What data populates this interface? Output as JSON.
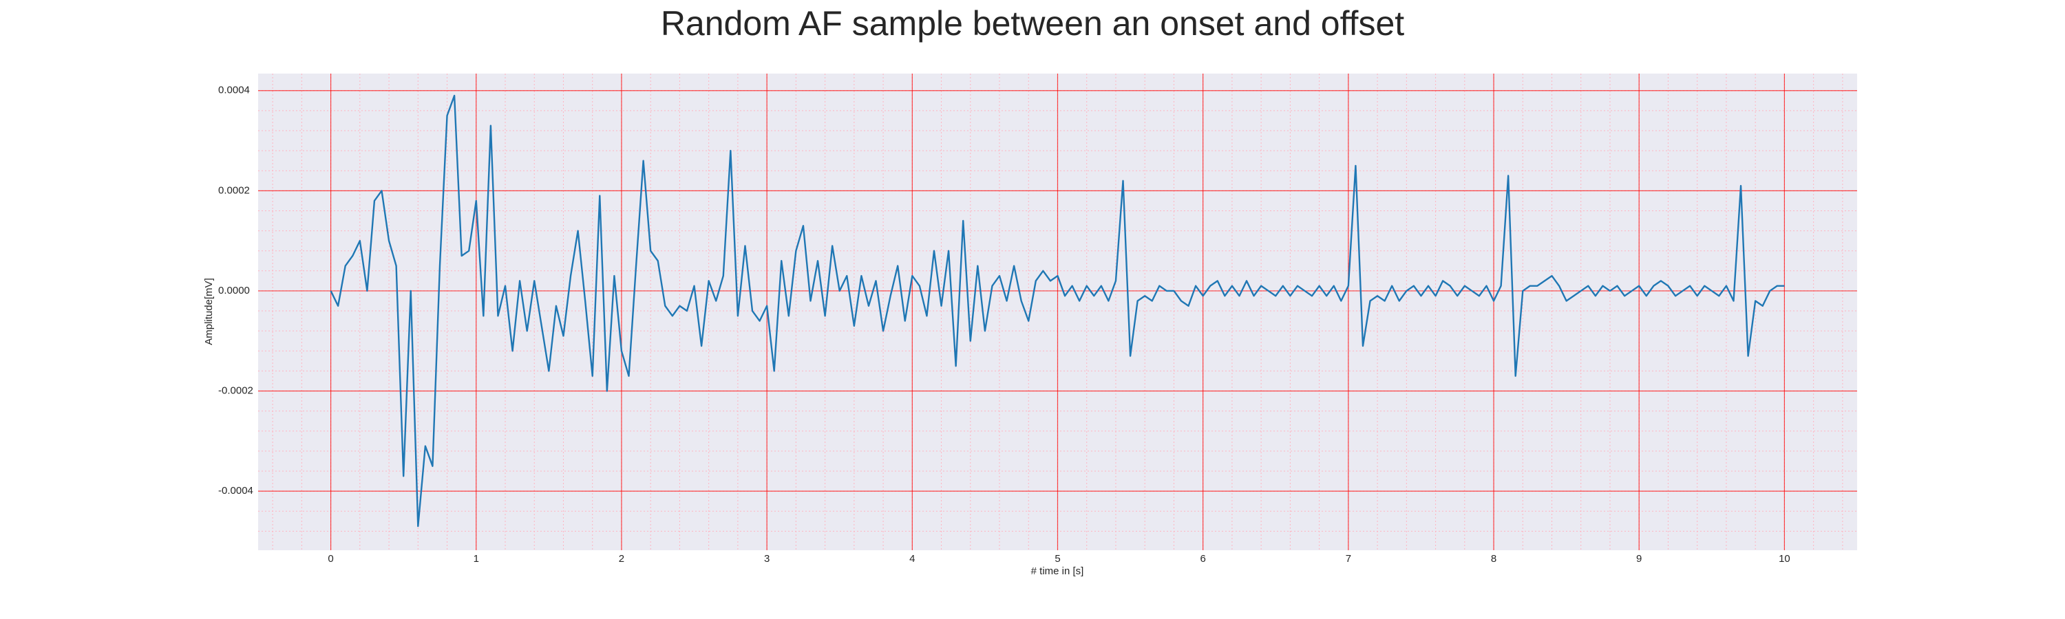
{
  "chart_data": {
    "type": "line",
    "title": "Random AF sample between an onset and offset",
    "xlabel": "# time in [s]",
    "ylabel": "Amplitude[mV]",
    "color": "#1f77b4",
    "grid": true,
    "grid_color": "#ff0000",
    "xlim": [
      -0.5,
      10.5
    ],
    "xticks": [
      0,
      1,
      2,
      3,
      4,
      5,
      6,
      7,
      8,
      9,
      10
    ],
    "ylim": [
      -0.000518,
      0.000434
    ],
    "yticks": [
      -0.0004,
      -0.0002,
      {
        "value": 0,
        "label": "0.0000"
      },
      0.0002,
      0.0004
    ],
    "x": [
      0,
      0.05,
      0.1,
      0.15,
      0.2,
      0.25,
      0.3,
      0.35,
      0.4,
      0.45,
      0.5,
      0.55,
      0.6,
      0.65,
      0.7,
      0.75,
      0.8,
      0.85,
      0.9,
      0.95,
      1,
      1.05,
      1.1,
      1.15,
      1.2,
      1.25,
      1.3,
      1.35,
      1.4,
      1.45,
      1.5,
      1.55,
      1.6,
      1.65,
      1.7,
      1.75,
      1.8,
      1.85,
      1.9,
      1.95,
      2,
      2.05,
      2.1,
      2.15,
      2.2,
      2.25,
      2.3,
      2.35,
      2.4,
      2.45,
      2.5,
      2.55,
      2.6,
      2.65,
      2.7,
      2.75,
      2.8,
      2.85,
      2.9,
      2.95,
      3,
      3.05,
      3.1,
      3.15,
      3.2,
      3.25,
      3.3,
      3.35,
      3.4,
      3.45,
      3.5,
      3.55,
      3.6,
      3.65,
      3.7,
      3.75,
      3.8,
      3.85,
      3.9,
      3.95,
      4,
      4.05,
      4.1,
      4.15,
      4.2,
      4.25,
      4.3,
      4.35,
      4.4,
      4.45,
      4.5,
      4.55,
      4.6,
      4.65,
      4.7,
      4.75,
      4.8,
      4.85,
      4.9,
      4.95,
      5,
      5.05,
      5.1,
      5.15,
      5.2,
      5.25,
      5.3,
      5.35,
      5.4,
      5.45,
      5.5,
      5.55,
      5.6,
      5.65,
      5.7,
      5.75,
      5.8,
      5.85,
      5.9,
      5.95,
      6,
      6.05,
      6.1,
      6.15,
      6.2,
      6.25,
      6.3,
      6.35,
      6.4,
      6.45,
      6.5,
      6.55,
      6.6,
      6.65,
      6.7,
      6.75,
      6.8,
      6.85,
      6.9,
      6.95,
      7,
      7.05,
      7.1,
      7.15,
      7.2,
      7.25,
      7.3,
      7.35,
      7.4,
      7.45,
      7.5,
      7.55,
      7.6,
      7.65,
      7.7,
      7.75,
      7.8,
      7.85,
      7.9,
      7.95,
      8,
      8.05,
      8.1,
      8.15,
      8.2,
      8.25,
      8.3,
      8.35,
      8.4,
      8.45,
      8.5,
      8.55,
      8.6,
      8.65,
      8.7,
      8.75,
      8.8,
      8.85,
      8.9,
      8.95,
      9,
      9.05,
      9.1,
      9.15,
      9.2,
      9.25,
      9.3,
      9.35,
      9.4,
      9.45,
      9.5,
      9.55,
      9.6,
      9.65,
      9.7,
      9.75,
      9.8,
      9.85,
      9.9,
      9.95,
      10
    ],
    "values": [
      0,
      -3e-05,
      5e-05,
      7e-05,
      0.0001,
      0,
      0.00018,
      0.0002,
      0.0001,
      5e-05,
      -0.00037,
      0,
      -0.00047,
      -0.00031,
      -0.00035,
      5e-05,
      0.00035,
      0.00039,
      7e-05,
      8e-05,
      0.00018,
      -5e-05,
      0.00033,
      -5e-05,
      1e-05,
      -0.00012,
      2e-05,
      -8e-05,
      2e-05,
      -7e-05,
      -0.00016,
      -3e-05,
      -9e-05,
      3e-05,
      0.00012,
      -2e-05,
      -0.00017,
      0.00019,
      -0.0002,
      3e-05,
      -0.00012,
      -0.00017,
      5e-05,
      0.00026,
      8e-05,
      6e-05,
      -3e-05,
      -5e-05,
      -3e-05,
      -4e-05,
      1e-05,
      -0.00011,
      2e-05,
      -2e-05,
      3e-05,
      0.00028,
      -5e-05,
      9e-05,
      -4e-05,
      -6e-05,
      -3e-05,
      -0.00016,
      6e-05,
      -5e-05,
      8e-05,
      0.00013,
      -2e-05,
      6e-05,
      -5e-05,
      9e-05,
      0,
      3e-05,
      -7e-05,
      3e-05,
      -3e-05,
      2e-05,
      -8e-05,
      -1e-05,
      5e-05,
      -6e-05,
      3e-05,
      1e-05,
      -5e-05,
      8e-05,
      -3e-05,
      8e-05,
      -0.00015,
      0.00014,
      -0.0001,
      5e-05,
      -8e-05,
      1e-05,
      3e-05,
      -2e-05,
      5e-05,
      -2e-05,
      -6e-05,
      2e-05,
      4e-05,
      2e-05,
      3e-05,
      -1e-05,
      1e-05,
      -2e-05,
      1e-05,
      -1e-05,
      1e-05,
      -2e-05,
      2e-05,
      0.00022,
      -0.00013,
      -2e-05,
      -1e-05,
      -2e-05,
      1e-05,
      0,
      0,
      -2e-05,
      -3e-05,
      1e-05,
      -1e-05,
      1e-05,
      2e-05,
      -1e-05,
      1e-05,
      -1e-05,
      2e-05,
      -1e-05,
      1e-05,
      0,
      -1e-05,
      1e-05,
      -1e-05,
      1e-05,
      0,
      -1e-05,
      1e-05,
      -1e-05,
      1e-05,
      -2e-05,
      1e-05,
      0.00025,
      -0.00011,
      -2e-05,
      -1e-05,
      -2e-05,
      1e-05,
      -2e-05,
      0,
      1e-05,
      -1e-05,
      1e-05,
      -1e-05,
      2e-05,
      1e-05,
      -1e-05,
      1e-05,
      0,
      -1e-05,
      1e-05,
      -2e-05,
      1e-05,
      0.00023,
      -0.00017,
      0,
      1e-05,
      1e-05,
      2e-05,
      3e-05,
      1e-05,
      -2e-05,
      -1e-05,
      0,
      1e-05,
      -1e-05,
      1e-05,
      0,
      1e-05,
      -1e-05,
      0,
      1e-05,
      -1e-05,
      1e-05,
      2e-05,
      1e-05,
      -1e-05,
      0,
      1e-05,
      -1e-05,
      1e-05,
      0,
      -1e-05,
      1e-05,
      -2e-05,
      0.00021,
      -0.00013,
      -2e-05,
      -3e-05,
      0,
      1e-05,
      1e-05
    ]
  }
}
